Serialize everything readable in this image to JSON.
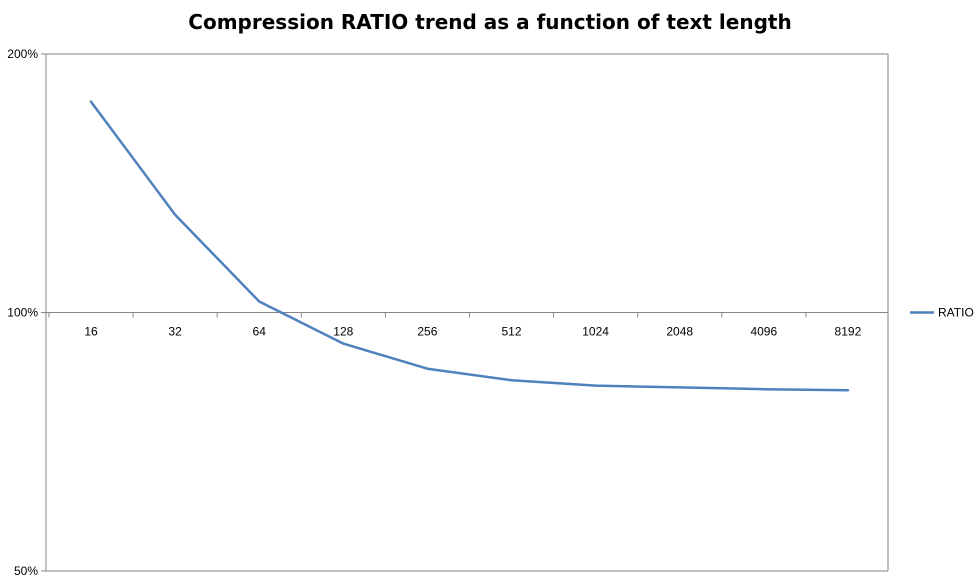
{
  "chart_data": {
    "type": "line",
    "title": "Compression RATIO trend as a function of text length",
    "xlabel": "",
    "ylabel": "",
    "y_scale": "log",
    "ylim": [
      0.5,
      2.0
    ],
    "y_ticks": [
      {
        "value": 2.0,
        "label": "200%"
      },
      {
        "value": 1.0,
        "label": "100%"
      },
      {
        "value": 0.5,
        "label": "50%"
      }
    ],
    "categories": [
      "16",
      "32",
      "64",
      "128",
      "256",
      "512",
      "1024",
      "2048",
      "4096",
      "8192"
    ],
    "series": [
      {
        "name": "RATIO",
        "color": "#4F81BD",
        "values": [
          1.76,
          1.3,
          1.03,
          0.92,
          0.86,
          0.834,
          0.822,
          0.818,
          0.814,
          0.812
        ]
      }
    ],
    "legend_position": "right",
    "gridlines": false
  }
}
